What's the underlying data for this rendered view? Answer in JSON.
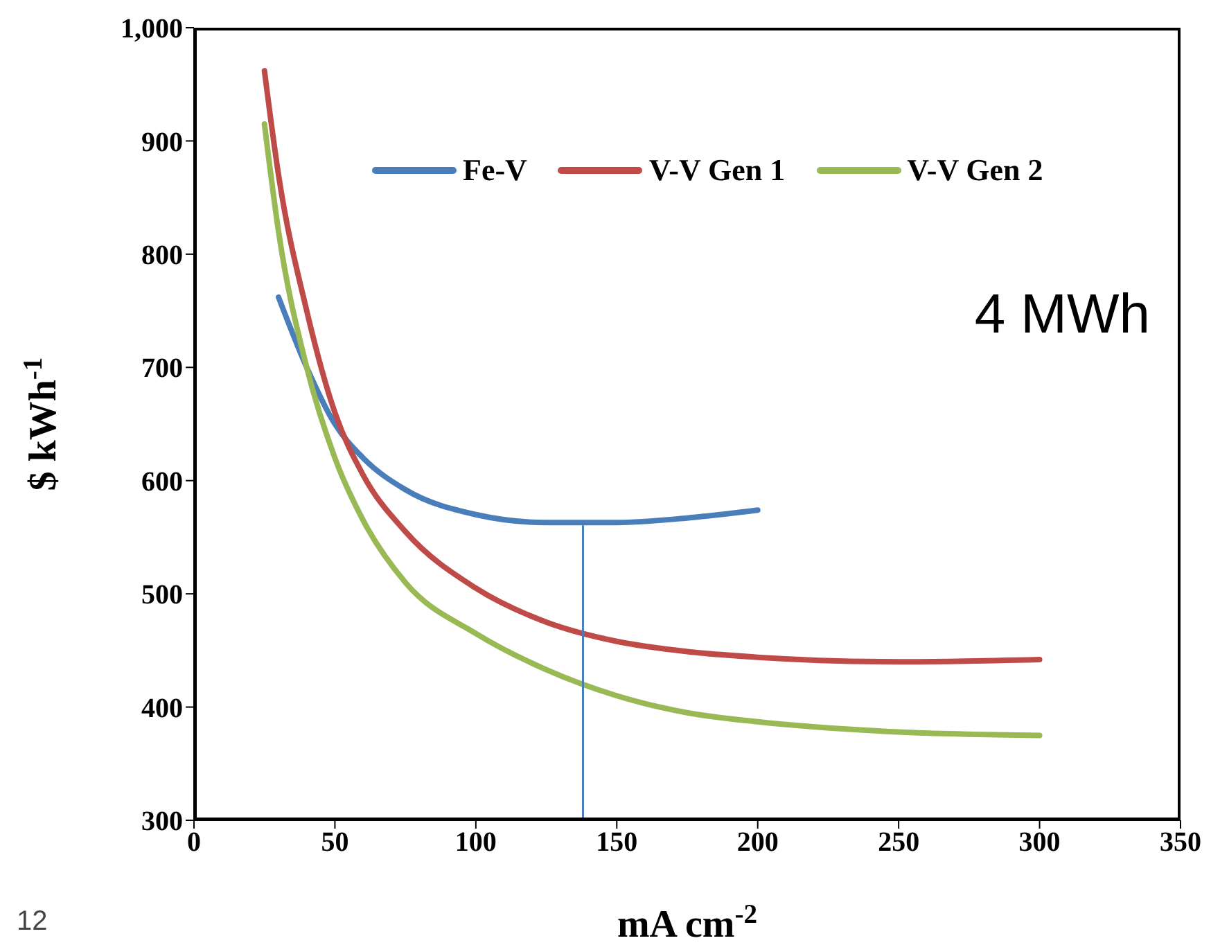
{
  "chart_data": {
    "type": "line",
    "xlabel": "mA cm$^{-2}$",
    "ylabel": "$ kWh$^{-1}$",
    "xlim": [
      0,
      350
    ],
    "xticks": [
      0,
      50,
      100,
      150,
      200,
      250,
      300,
      350
    ],
    "ylim": [
      300,
      1000
    ],
    "yticks": [
      300,
      400,
      500,
      600,
      700,
      800,
      900,
      {
        "value": 1000,
        "label": "1,000"
      }
    ],
    "legend": "top",
    "marker": "none",
    "line_style": "solid",
    "annotations": [
      "4 MWh",
      "12"
    ],
    "series": [
      {
        "name": "Fe-V",
        "color": "#4a7ebb",
        "x": [
          30,
          40,
          50,
          60,
          75,
          100,
          125,
          150,
          175,
          200
        ],
        "values": [
          762,
          700,
          650,
          620,
          592,
          570,
          563,
          563,
          567,
          574
        ]
      },
      {
        "name": "V-V Gen 1",
        "color": "#be4b48",
        "x": [
          25,
          30,
          40,
          50,
          60,
          75,
          100,
          125,
          150,
          175,
          200,
          250,
          300
        ],
        "values": [
          962,
          870,
          750,
          660,
          605,
          555,
          505,
          475,
          458,
          449,
          444,
          440,
          442
        ]
      },
      {
        "name": "V-V Gen 2",
        "color": "#98b954",
        "x": [
          25,
          30,
          40,
          50,
          60,
          75,
          100,
          125,
          150,
          175,
          200,
          250,
          300
        ],
        "values": [
          915,
          820,
          700,
          620,
          565,
          510,
          465,
          433,
          410,
          395,
          387,
          378,
          375
        ]
      },
      {
        "color": "#4a7ebb",
        "x": [
          138,
          138
        ],
        "values": [
          300,
          560
        ]
      }
    ]
  }
}
